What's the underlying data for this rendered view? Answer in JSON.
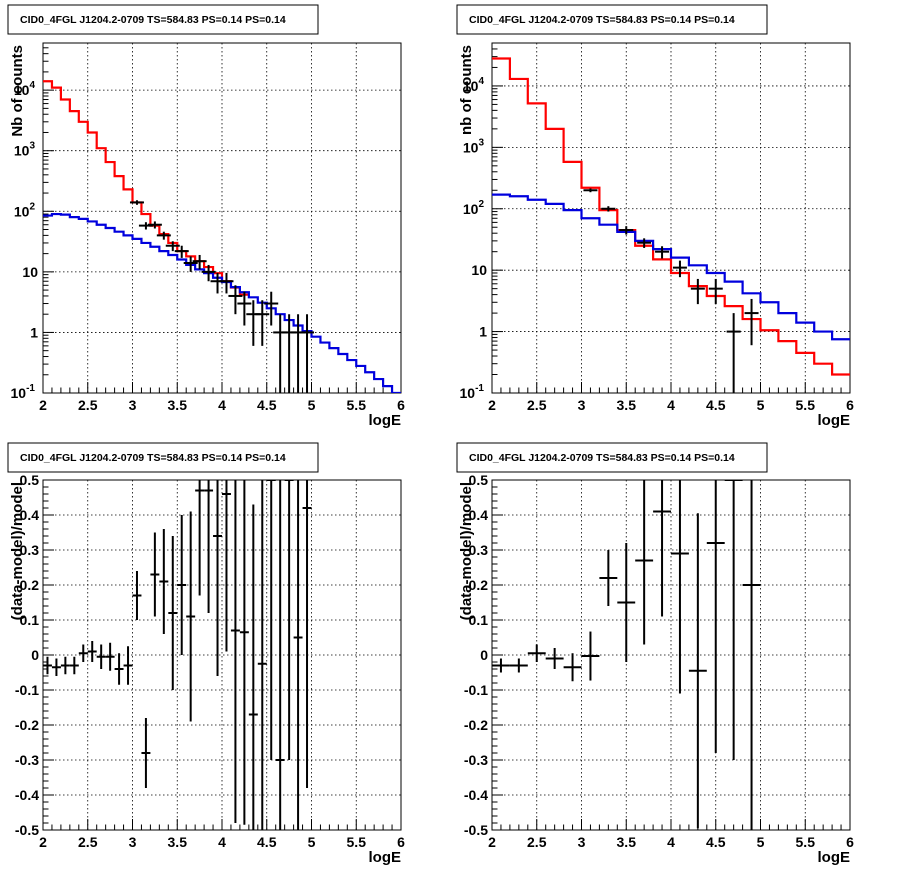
{
  "chart_data": [
    {
      "type": "line",
      "title": "CID0_4FGL J1204.2-0709 TS=584.83 PS=0.14 PS=0.14",
      "xlabel": "logE",
      "ylabel": "Nb of counts",
      "xlim": [
        2,
        6
      ],
      "ylim": [
        0.1,
        60000
      ],
      "yscale": "log",
      "grid": true,
      "x_ticks": [
        "2",
        "2.5",
        "3",
        "3.5",
        "4",
        "4.5",
        "5",
        "5.5",
        "6"
      ],
      "y_ticks": [
        {
          "value": 0.1,
          "base": "10",
          "exp": "-1"
        },
        {
          "value": 1,
          "label": "1"
        },
        {
          "value": 10,
          "label": "10"
        },
        {
          "value": 100,
          "base": "10",
          "exp": "2"
        },
        {
          "value": 1000,
          "base": "10",
          "exp": "3"
        },
        {
          "value": 10000,
          "base": "10",
          "exp": "4"
        }
      ],
      "series": [
        {
          "color": "#ff0000",
          "kind": "step",
          "bin_width": 0.1,
          "x": [
            2.0,
            2.1,
            2.2,
            2.3,
            2.4,
            2.5,
            2.6,
            2.7,
            2.8,
            2.9,
            3.0,
            3.1,
            3.2,
            3.3,
            3.4,
            3.5,
            3.6,
            3.7,
            3.8,
            3.9,
            4.0,
            4.1,
            4.2
          ],
          "y": [
            14000,
            11000,
            7000,
            4500,
            3000,
            2000,
            1100,
            650,
            380,
            230,
            140,
            90,
            58,
            42,
            30,
            22,
            18,
            15,
            12,
            9.5,
            7,
            5.5,
            4.2
          ]
        },
        {
          "color": "#0000dd",
          "kind": "step",
          "bin_width": 0.1,
          "x": [
            2.0,
            2.1,
            2.2,
            2.3,
            2.4,
            2.5,
            2.6,
            2.7,
            2.8,
            2.9,
            3.0,
            3.1,
            3.2,
            3.3,
            3.4,
            3.5,
            3.6,
            3.7,
            3.8,
            3.9,
            4.0,
            4.1,
            4.2,
            4.3,
            4.4,
            4.5,
            4.6,
            4.7,
            4.8,
            4.9,
            5.0,
            5.1,
            5.2,
            5.3,
            5.4,
            5.5,
            5.6,
            5.7,
            5.8,
            5.9
          ],
          "y": [
            85,
            90,
            88,
            80,
            75,
            68,
            60,
            53,
            46,
            40,
            35,
            30,
            26,
            22,
            19,
            16,
            13,
            11,
            9.5,
            8,
            6.8,
            5.6,
            4.6,
            3.8,
            3.1,
            2.5,
            2.0,
            1.6,
            1.3,
            1.05,
            0.85,
            0.68,
            0.55,
            0.44,
            0.35,
            0.28,
            0.22,
            0.17,
            0.13,
            0.1
          ]
        },
        {
          "color": "#000000",
          "kind": "errorbar",
          "x": [
            3.05,
            3.15,
            3.25,
            3.35,
            3.45,
            3.55,
            3.65,
            3.75,
            3.85,
            3.95,
            4.05,
            4.15,
            4.25,
            4.35,
            4.45,
            4.55,
            4.65,
            4.75,
            4.85,
            4.95
          ],
          "y": [
            140,
            58,
            60,
            40,
            27,
            22,
            14,
            15,
            10,
            7,
            7,
            4,
            3,
            2,
            2,
            3,
            1,
            1,
            1,
            1
          ],
          "yerr": [
            12,
            8,
            8,
            6,
            5,
            5,
            4,
            4,
            3,
            2.6,
            2.6,
            2,
            1.7,
            1.4,
            1.4,
            1.7,
            1,
            1,
            1,
            1
          ]
        }
      ]
    },
    {
      "type": "line",
      "title": "CID0_4FGL J1204.2-0709 TS=584.83 PS=0.14 PS=0.14",
      "xlabel": "logE",
      "ylabel": "nb of counts",
      "xlim": [
        2,
        6
      ],
      "ylim": [
        0.1,
        50000
      ],
      "yscale": "log",
      "grid": true,
      "x_ticks": [
        "2",
        "2.5",
        "3",
        "3.5",
        "4",
        "4.5",
        "5",
        "5.5",
        "6"
      ],
      "y_ticks": [
        {
          "value": 0.1,
          "base": "10",
          "exp": "-1"
        },
        {
          "value": 1,
          "label": "1"
        },
        {
          "value": 10,
          "label": "10"
        },
        {
          "value": 100,
          "base": "10",
          "exp": "2"
        },
        {
          "value": 1000,
          "base": "10",
          "exp": "3"
        },
        {
          "value": 10000,
          "base": "10",
          "exp": "4"
        }
      ],
      "series": [
        {
          "color": "#ff0000",
          "kind": "step",
          "bin_width": 0.2,
          "x": [
            2.0,
            2.2,
            2.4,
            2.6,
            2.8,
            3.0,
            3.2,
            3.4,
            3.6,
            3.8,
            4.0,
            4.2,
            4.4,
            4.6,
            4.8,
            5.0,
            5.2,
            5.4,
            5.6,
            5.8
          ],
          "y": [
            28000,
            13000,
            5200,
            2000,
            580,
            220,
            95,
            45,
            25,
            15,
            9,
            5.5,
            3.8,
            2.6,
            1.6,
            1.05,
            0.7,
            0.45,
            0.3,
            0.2
          ]
        },
        {
          "color": "#0000dd",
          "kind": "step",
          "bin_width": 0.2,
          "x": [
            2.0,
            2.2,
            2.4,
            2.6,
            2.8,
            3.0,
            3.2,
            3.4,
            3.6,
            3.8,
            4.0,
            4.2,
            4.4,
            4.6,
            4.8,
            5.0,
            5.2,
            5.4,
            5.6,
            5.8
          ],
          "y": [
            170,
            160,
            140,
            120,
            95,
            70,
            55,
            42,
            30,
            22,
            16,
            12,
            9,
            6.5,
            4.2,
            3,
            2,
            1.4,
            1.0,
            0.75
          ]
        },
        {
          "color": "#000000",
          "kind": "errorbar",
          "x": [
            3.1,
            3.3,
            3.5,
            3.7,
            3.9,
            4.1,
            4.3,
            4.5,
            4.7,
            4.9
          ],
          "y": [
            200,
            100,
            45,
            28,
            20,
            11,
            5,
            5,
            1,
            2
          ],
          "yerr": [
            14,
            10,
            7,
            5,
            4.5,
            3.3,
            2.2,
            2.2,
            1,
            1.4
          ]
        }
      ]
    },
    {
      "type": "scatter",
      "title": "CID0_4FGL J1204.2-0709 TS=584.83 PS=0.14 PS=0.14",
      "xlabel": "logE",
      "ylabel": "(data-model)/model",
      "xlim": [
        2,
        6
      ],
      "ylim": [
        -0.5,
        0.5
      ],
      "grid": true,
      "x_ticks": [
        "2",
        "2.5",
        "3",
        "3.5",
        "4",
        "4.5",
        "5",
        "5.5",
        "6"
      ],
      "y_ticks": [
        "-0.5",
        "-0.4",
        "-0.3",
        "-0.2",
        "-0.1",
        "0",
        "0.1",
        "0.2",
        "0.3",
        "0.4",
        "0.5"
      ],
      "series": [
        {
          "color": "#000000",
          "kind": "residual",
          "bin_width": 0.1,
          "x": [
            2.05,
            2.15,
            2.25,
            2.35,
            2.45,
            2.55,
            2.65,
            2.75,
            2.85,
            2.95,
            3.05,
            3.15,
            3.25,
            3.35,
            3.45,
            3.55,
            3.65,
            3.75,
            3.85,
            3.95,
            4.05,
            4.15,
            4.25,
            4.35,
            4.45,
            4.55,
            4.65,
            4.75,
            4.85,
            4.95
          ],
          "y": [
            -0.03,
            -0.035,
            -0.03,
            -0.03,
            0.005,
            0.01,
            -0.005,
            -0.005,
            -0.04,
            -0.03,
            0.17,
            -0.28,
            0.23,
            0.21,
            0.12,
            0.2,
            0.11,
            0.47,
            0.47,
            0.34,
            0.46,
            0.07,
            0.065,
            -0.17,
            -0.025,
            0.5,
            -0.3,
            0.5,
            0.05,
            0.42
          ],
          "yerr": [
            0.025,
            0.025,
            0.025,
            0.025,
            0.025,
            0.03,
            0.035,
            0.04,
            0.045,
            0.055,
            0.07,
            0.1,
            0.12,
            0.15,
            0.22,
            0.2,
            0.3,
            0.3,
            0.35,
            0.4,
            0.45,
            0.55,
            0.55,
            0.6,
            0.6,
            0.8,
            0.8,
            0.8,
            0.8,
            0.8
          ]
        }
      ]
    },
    {
      "type": "scatter",
      "title": "CID0_4FGL J1204.2-0709 TS=584.83 PS=0.14 PS=0.14",
      "xlabel": "logE",
      "ylabel": "(data-model)/model",
      "xlim": [
        2,
        6
      ],
      "ylim": [
        -0.5,
        0.5
      ],
      "grid": true,
      "x_ticks": [
        "2",
        "2.5",
        "3",
        "3.5",
        "4",
        "4.5",
        "5",
        "5.5",
        "6"
      ],
      "y_ticks": [
        "-0.5",
        "-0.4",
        "-0.3",
        "-0.2",
        "-0.1",
        "0",
        "0.1",
        "0.2",
        "0.3",
        "0.4",
        "0.5"
      ],
      "series": [
        {
          "color": "#000000",
          "kind": "residual",
          "bin_width": 0.2,
          "x": [
            2.1,
            2.3,
            2.5,
            2.7,
            2.9,
            3.1,
            3.3,
            3.5,
            3.7,
            3.9,
            4.1,
            4.3,
            4.5,
            4.7,
            4.9
          ],
          "y": [
            -0.03,
            -0.03,
            0.005,
            -0.01,
            -0.035,
            -0.003,
            0.22,
            0.15,
            0.27,
            0.41,
            0.29,
            -0.045,
            0.32,
            0.5,
            0.2
          ],
          "yerr": [
            0.02,
            0.02,
            0.025,
            0.03,
            0.04,
            0.07,
            0.08,
            0.17,
            0.24,
            0.3,
            0.4,
            0.45,
            0.6,
            0.8,
            0.9
          ]
        }
      ]
    }
  ]
}
